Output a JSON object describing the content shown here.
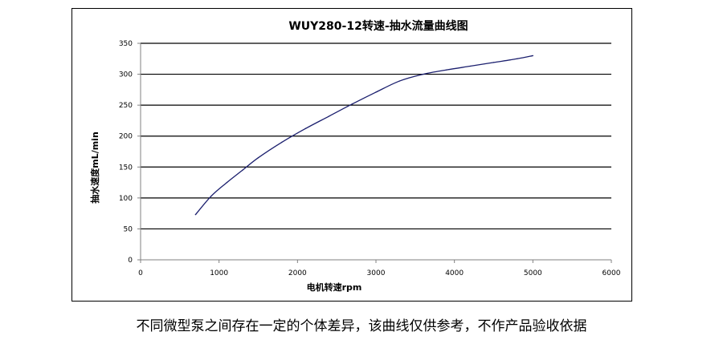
{
  "chart_data": {
    "type": "line",
    "title": "WUY280-12转速-抽水流量曲线图",
    "xlabel": "电机转速rpm",
    "ylabel": "抽水速度mL/min",
    "xlim": [
      0,
      6000
    ],
    "ylim": [
      0,
      350
    ],
    "x_ticks": [
      0,
      1000,
      2000,
      3000,
      4000,
      5000,
      6000
    ],
    "y_ticks": [
      0,
      50,
      100,
      150,
      200,
      250,
      300,
      350
    ],
    "grid": "horizontal",
    "legend": "none",
    "line_color": "#1b1f6e",
    "series": [
      {
        "x": [
          700,
          900,
          1100,
          1300,
          1500,
          1800,
          2100,
          2400,
          2700,
          3000,
          3300,
          3600,
          3900,
          4200,
          4500,
          4800,
          5000
        ],
        "y": [
          73,
          103,
          125,
          145,
          165,
          190,
          212,
          232,
          252,
          271,
          289,
          300,
          307,
          313,
          319,
          325,
          330
        ]
      }
    ]
  },
  "caption": "不同微型泵之间存在一定的个体差异，该曲线仅供参考，不作产品验收依据"
}
